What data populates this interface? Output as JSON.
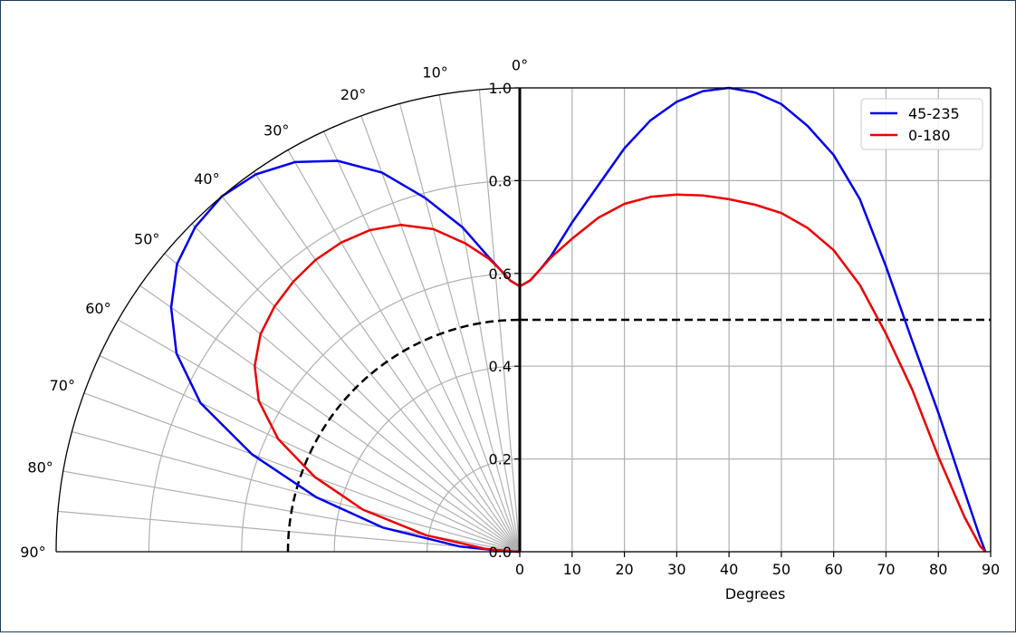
{
  "chart_data": {
    "type": "line",
    "title": "",
    "xlabel": "Degrees",
    "ylabel": "",
    "xlim": [
      0,
      90
    ],
    "ylim": [
      0,
      1
    ],
    "x_ticks": [
      0,
      10,
      20,
      30,
      40,
      50,
      60,
      70,
      80,
      90
    ],
    "y_ticks": [
      0.0,
      0.2,
      0.4,
      0.6,
      0.8,
      1.0
    ],
    "x_tick_labels": [
      "0",
      "10",
      "20",
      "30",
      "40",
      "50",
      "60",
      "70",
      "80",
      "90"
    ],
    "y_tick_labels": [
      "0.0",
      "0.2",
      "0.4",
      "0.6",
      "0.8",
      "1.0"
    ],
    "polar_angle_labels": [
      "0°",
      "10°",
      "20°",
      "30°",
      "40°",
      "50°",
      "60°",
      "70°",
      "80°",
      "90°"
    ],
    "polar_angles": [
      0,
      10,
      20,
      30,
      40,
      50,
      60,
      70,
      80,
      90
    ],
    "polar_radii_grid": [
      0.2,
      0.4,
      0.6,
      0.8
    ],
    "grid": true,
    "legend": "top-right",
    "reference_line": 0.5,
    "series": [
      {
        "name": "45-235",
        "color": "#0000ee",
        "x": [
          0,
          2,
          4,
          6,
          10,
          15,
          20,
          25,
          30,
          35,
          40,
          45,
          50,
          55,
          60,
          65,
          70,
          75,
          80,
          85,
          88,
          89
        ],
        "y": [
          0.572,
          0.585,
          0.61,
          0.638,
          0.71,
          0.79,
          0.87,
          0.93,
          0.97,
          0.993,
          1.0,
          0.99,
          0.965,
          0.918,
          0.855,
          0.76,
          0.615,
          0.455,
          0.3,
          0.13,
          0.03,
          0.0
        ]
      },
      {
        "name": "0-180",
        "color": "#ee0000",
        "x": [
          0,
          2,
          4,
          6,
          10,
          15,
          20,
          25,
          30,
          35,
          40,
          45,
          50,
          55,
          60,
          65,
          70,
          75,
          80,
          85,
          88,
          89
        ],
        "y": [
          0.572,
          0.585,
          0.61,
          0.635,
          0.675,
          0.72,
          0.75,
          0.765,
          0.77,
          0.768,
          0.76,
          0.748,
          0.73,
          0.698,
          0.65,
          0.575,
          0.47,
          0.35,
          0.205,
          0.075,
          0.012,
          0.0
        ]
      }
    ]
  }
}
